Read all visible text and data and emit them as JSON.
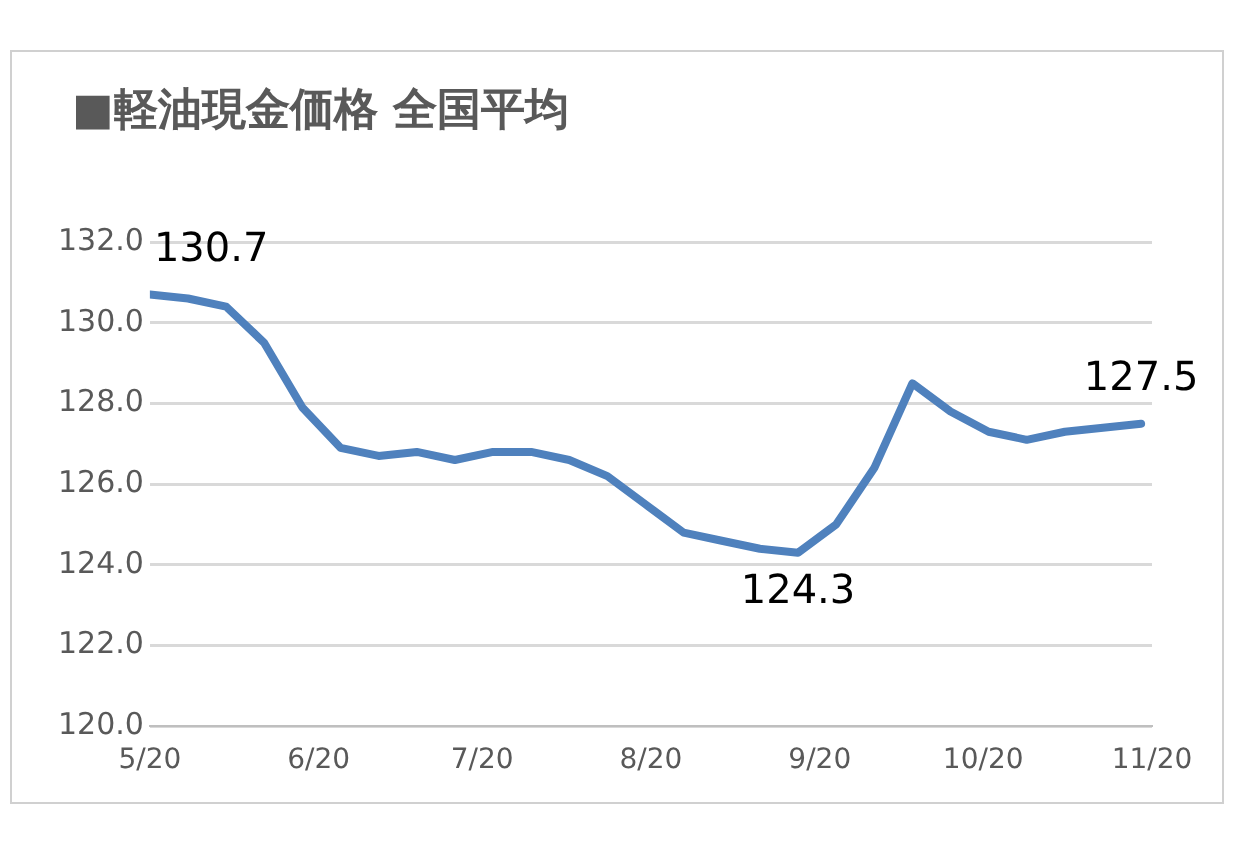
{
  "chart_data": {
    "type": "line",
    "title": "■軽油現金価格  全国平均",
    "x": [
      "2020-05-01",
      "2020-05-08",
      "2020-05-15",
      "2020-05-22",
      "2020-05-29",
      "2020-06-05",
      "2020-06-12",
      "2020-06-19",
      "2020-06-26",
      "2020-07-03",
      "2020-07-10",
      "2020-07-17",
      "2020-07-24",
      "2020-07-31",
      "2020-08-07",
      "2020-08-14",
      "2020-08-21",
      "2020-08-28",
      "2020-09-04",
      "2020-09-11",
      "2020-09-18",
      "2020-09-25",
      "2020-10-02",
      "2020-10-09",
      "2020-10-16",
      "2020-10-23",
      "2020-10-30"
    ],
    "series": [
      {
        "color": "#4f81bd",
        "values": [
          130.7,
          130.6,
          130.4,
          129.5,
          127.9,
          126.9,
          126.7,
          126.8,
          126.6,
          126.8,
          126.8,
          126.6,
          126.2,
          125.5,
          124.8,
          124.6,
          124.4,
          124.3,
          125.0,
          126.4,
          128.5,
          127.8,
          127.3,
          127.1,
          127.3,
          127.4,
          127.5
        ]
      }
    ],
    "xlim": [
      "2020-05-01",
      "2020-11-01"
    ],
    "xticks": [
      {
        "value": "2020-05-01",
        "label": "5/20"
      },
      {
        "value": "2020-06-01",
        "label": "6/20"
      },
      {
        "value": "2020-07-01",
        "label": "7/20"
      },
      {
        "value": "2020-08-01",
        "label": "8/20"
      },
      {
        "value": "2020-09-01",
        "label": "9/20"
      },
      {
        "value": "2020-10-01",
        "label": "10/20"
      },
      {
        "value": "2020-11-01",
        "label": "11/20"
      }
    ],
    "ylim": [
      120,
      132
    ],
    "yticks": [
      {
        "value": 120,
        "label": "120.0"
      },
      {
        "value": 122,
        "label": "122.0"
      },
      {
        "value": 124,
        "label": "124.0"
      },
      {
        "value": 126,
        "label": "126.0"
      },
      {
        "value": 128,
        "label": "128.0"
      },
      {
        "value": 130,
        "label": "130.0"
      },
      {
        "value": 132,
        "label": "132.0"
      }
    ],
    "grid": "y",
    "legend": false,
    "marker": "none",
    "line_style": "solid",
    "annotations": [
      {
        "text": "130.7",
        "x": "2020-05-01",
        "y": 130.7
      },
      {
        "text": "124.3",
        "x": "2020-08-28",
        "y": 124.3
      },
      {
        "text": "127.5",
        "x": "2020-10-30",
        "y": 127.5
      }
    ]
  }
}
